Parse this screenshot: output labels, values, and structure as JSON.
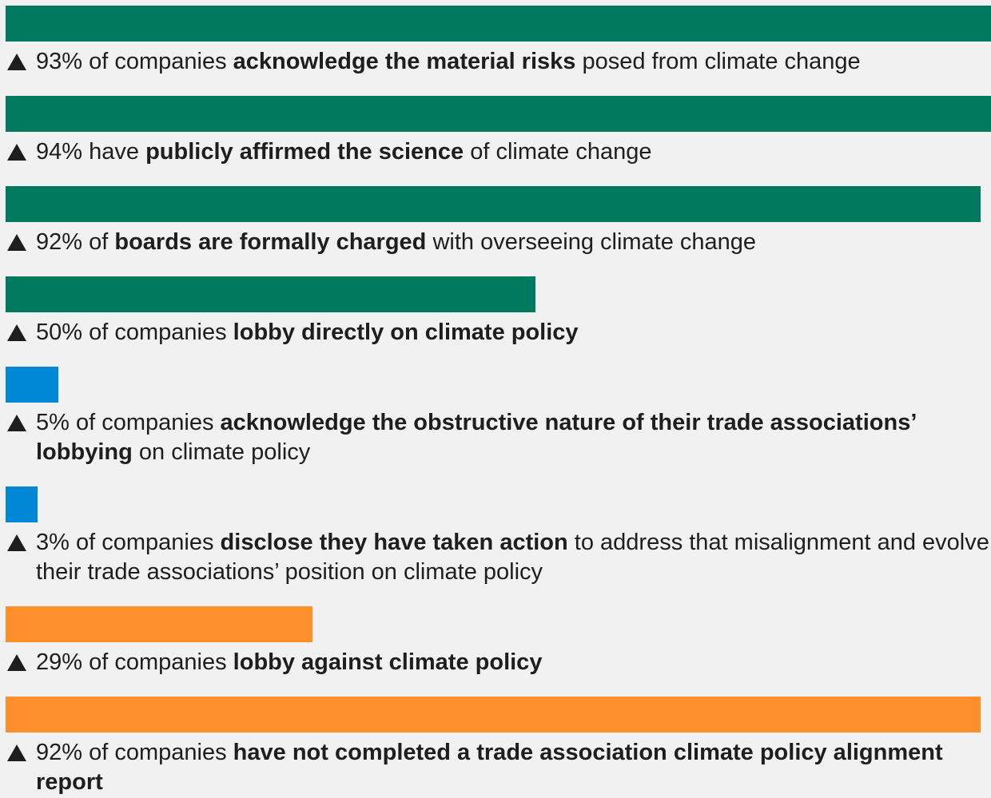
{
  "chart_data": {
    "type": "bar",
    "xlim": [
      0,
      93
    ],
    "items": [
      {
        "value": 93,
        "value_label": "93%",
        "color": "#007a5e",
        "parts": [
          "of companies",
          "acknowledge the material risks",
          "posed from climate change"
        ],
        "bold": [
          false,
          true,
          false
        ]
      },
      {
        "value": 94,
        "value_label": "94%",
        "color": "#007a5e",
        "parts": [
          "have",
          "publicly affirmed the science",
          "of climate change"
        ],
        "bold": [
          false,
          true,
          false
        ]
      },
      {
        "value": 92,
        "value_label": "92%",
        "color": "#007a5e",
        "parts": [
          "of",
          "boards are formally charged",
          "with overseeing climate change"
        ],
        "bold": [
          false,
          true,
          false
        ]
      },
      {
        "value": 50,
        "value_label": "50%",
        "color": "#007a5e",
        "parts": [
          "of companies",
          "lobby directly on climate policy"
        ],
        "bold": [
          false,
          true
        ]
      },
      {
        "value": 5,
        "value_label": "5%",
        "color": "#0087d6",
        "parts": [
          "of companies",
          "acknowledge the obstructive nature of their trade associations’ lobbying",
          "on climate policy"
        ],
        "bold": [
          false,
          true,
          false
        ]
      },
      {
        "value": 3,
        "value_label": "3%",
        "color": "#0087d6",
        "parts": [
          "of companies",
          "disclose they have taken action",
          "to address that misalignment and evolve their trade associations’ position on climate policy"
        ],
        "bold": [
          false,
          true,
          false
        ]
      },
      {
        "value": 29,
        "value_label": "29%",
        "color": "#ff8f2a",
        "parts": [
          "of companies",
          "lobby against climate policy"
        ],
        "bold": [
          false,
          true
        ]
      },
      {
        "value": 92,
        "value_label": "92%",
        "color": "#ff8f2a",
        "parts": [
          "of companies",
          "have not completed a trade association climate policy alignment report"
        ],
        "bold": [
          false,
          true
        ]
      }
    ]
  }
}
